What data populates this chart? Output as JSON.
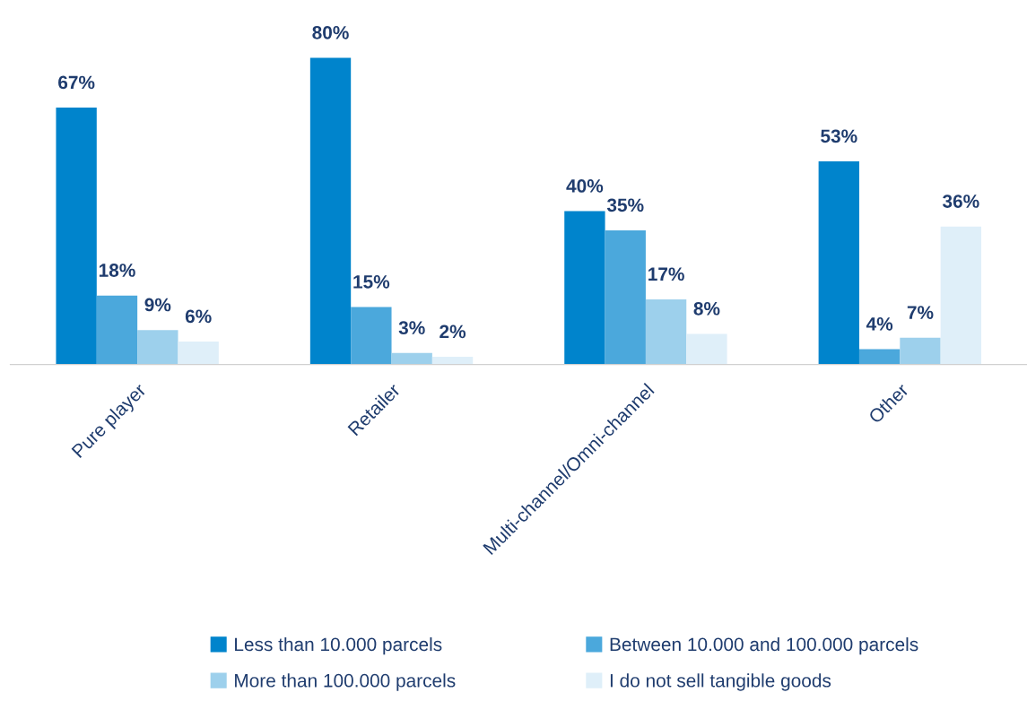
{
  "chart_data": {
    "type": "bar",
    "categories": [
      "Pure player",
      "Retailer",
      "Multi-channel/Omni-channel",
      "Other"
    ],
    "series": [
      {
        "name": "Less than 10.000 parcels",
        "color": "#0084cc",
        "values": [
          67,
          80,
          40,
          53
        ],
        "value_labels": [
          "67%",
          "80%",
          "40%",
          "53%"
        ]
      },
      {
        "name": "Between 10.000 and 100.000 parcels",
        "color": "#4ba8dc",
        "values": [
          18,
          15,
          35,
          4
        ],
        "value_labels": [
          "18%",
          "15%",
          "35%",
          "4%"
        ]
      },
      {
        "name": "More than 100.000 parcels",
        "color": "#9dd0ec",
        "values": [
          9,
          3,
          17,
          7
        ],
        "value_labels": [
          "9%",
          "3%",
          "17%",
          "7%"
        ]
      },
      {
        "name": "I do not sell tangible goods",
        "color": "#dfeff9",
        "values": [
          6,
          2,
          8,
          36
        ],
        "value_labels": [
          "6%",
          "2%",
          "8%",
          "36%"
        ]
      }
    ],
    "legend": "bottom",
    "grid": false,
    "tick_labels": "x"
  }
}
